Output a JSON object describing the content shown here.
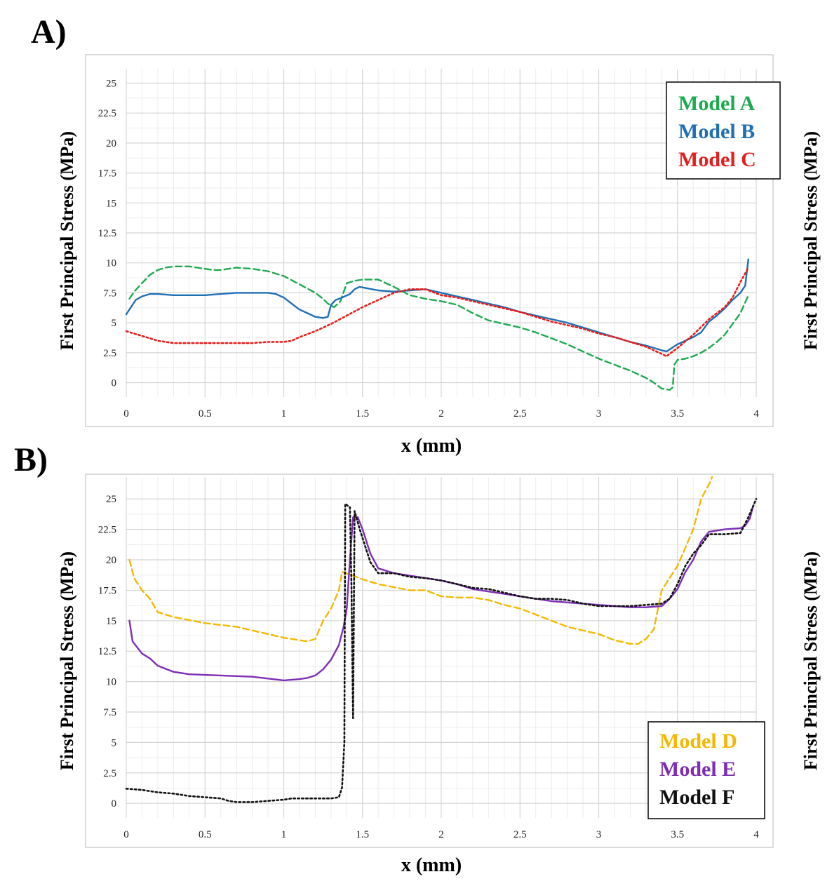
{
  "panels": {
    "a": {
      "label": "A)"
    },
    "b": {
      "label": "B)"
    }
  },
  "chart_data": [
    {
      "type": "line",
      "panel": "A)",
      "title": "",
      "xlabel": "x (mm)",
      "ylabel": "First Principal Stress (MPa)",
      "ylabel_right": "First Principal Stress (MPa)",
      "xlim": [
        0,
        4
      ],
      "ylim": [
        -1.2,
        26.2
      ],
      "xticks": [
        "0",
        "0.5",
        "1",
        "1.5",
        "2",
        "2.5",
        "3",
        "3.5",
        "4"
      ],
      "yticks": [
        "0",
        "2.5",
        "5",
        "7.5",
        "10",
        "12.5",
        "15",
        "17.5",
        "20",
        "22.5",
        "25"
      ],
      "grid": true,
      "legend_position": "top-right",
      "series": [
        {
          "name": "Model A",
          "color": "#1daa4f",
          "style": "dashed",
          "x": [
            0.02,
            0.05,
            0.1,
            0.15,
            0.2,
            0.25,
            0.3,
            0.35,
            0.4,
            0.45,
            0.5,
            0.55,
            0.6,
            0.7,
            0.8,
            0.9,
            1.0,
            1.1,
            1.2,
            1.25,
            1.28,
            1.32,
            1.36,
            1.4,
            1.45,
            1.5,
            1.6,
            1.7,
            1.8,
            1.9,
            2.0,
            2.1,
            2.2,
            2.3,
            2.4,
            2.5,
            2.6,
            2.7,
            2.8,
            2.9,
            3.0,
            3.1,
            3.2,
            3.3,
            3.35,
            3.4,
            3.45,
            3.47,
            3.48,
            3.5,
            3.55,
            3.6,
            3.65,
            3.7,
            3.75,
            3.8,
            3.85,
            3.9,
            3.95
          ],
          "y": [
            7.0,
            7.6,
            8.3,
            9.0,
            9.4,
            9.6,
            9.7,
            9.7,
            9.7,
            9.6,
            9.5,
            9.4,
            9.4,
            9.6,
            9.5,
            9.3,
            8.9,
            8.2,
            7.5,
            7.0,
            6.6,
            6.3,
            6.8,
            8.3,
            8.5,
            8.6,
            8.6,
            8.0,
            7.3,
            7.0,
            6.8,
            6.5,
            5.8,
            5.2,
            4.9,
            4.6,
            4.2,
            3.7,
            3.2,
            2.6,
            2.0,
            1.5,
            1.0,
            0.4,
            0.0,
            -0.5,
            -0.6,
            -0.4,
            1.5,
            1.9,
            2.0,
            2.2,
            2.5,
            2.9,
            3.4,
            4.0,
            4.9,
            5.8,
            7.3
          ]
        },
        {
          "name": "Model B",
          "color": "#1f6fb4",
          "style": "solid",
          "x": [
            0.0,
            0.03,
            0.06,
            0.1,
            0.15,
            0.2,
            0.3,
            0.4,
            0.5,
            0.6,
            0.7,
            0.8,
            0.9,
            0.95,
            1.0,
            1.05,
            1.1,
            1.15,
            1.2,
            1.25,
            1.28,
            1.3,
            1.33,
            1.37,
            1.42,
            1.45,
            1.48,
            1.52,
            1.6,
            1.7,
            1.8,
            1.9,
            2.0,
            2.1,
            2.2,
            2.3,
            2.4,
            2.5,
            2.6,
            2.7,
            2.8,
            2.9,
            3.0,
            3.1,
            3.2,
            3.3,
            3.4,
            3.43,
            3.5,
            3.6,
            3.65,
            3.7,
            3.75,
            3.8,
            3.85,
            3.9,
            3.93,
            3.95
          ],
          "y": [
            5.7,
            6.3,
            6.9,
            7.2,
            7.4,
            7.4,
            7.3,
            7.3,
            7.3,
            7.4,
            7.5,
            7.5,
            7.5,
            7.4,
            7.1,
            6.6,
            6.1,
            5.8,
            5.5,
            5.4,
            5.5,
            6.5,
            6.9,
            7.1,
            7.4,
            7.8,
            8.0,
            7.9,
            7.7,
            7.6,
            7.7,
            7.8,
            7.5,
            7.2,
            6.9,
            6.6,
            6.3,
            5.9,
            5.6,
            5.3,
            5.0,
            4.6,
            4.2,
            3.8,
            3.4,
            3.1,
            2.7,
            2.6,
            3.2,
            3.8,
            4.2,
            5.1,
            5.6,
            6.2,
            6.9,
            7.5,
            8.1,
            10.3
          ]
        },
        {
          "name": "Model C",
          "color": "#e61e1e",
          "style": "dotted",
          "x": [
            0.0,
            0.1,
            0.2,
            0.3,
            0.4,
            0.5,
            0.6,
            0.7,
            0.8,
            0.9,
            1.0,
            1.05,
            1.1,
            1.2,
            1.3,
            1.4,
            1.5,
            1.6,
            1.7,
            1.8,
            1.9,
            2.0,
            2.1,
            2.2,
            2.3,
            2.4,
            2.5,
            2.6,
            2.7,
            2.8,
            2.9,
            3.0,
            3.1,
            3.2,
            3.3,
            3.4,
            3.43,
            3.5,
            3.6,
            3.7,
            3.8,
            3.85,
            3.9,
            3.95
          ],
          "y": [
            4.3,
            3.9,
            3.5,
            3.3,
            3.3,
            3.3,
            3.3,
            3.3,
            3.3,
            3.4,
            3.4,
            3.5,
            3.8,
            4.3,
            4.9,
            5.6,
            6.3,
            6.9,
            7.5,
            7.8,
            7.8,
            7.3,
            7.1,
            6.8,
            6.5,
            6.2,
            5.9,
            5.5,
            5.1,
            4.8,
            4.5,
            4.1,
            3.8,
            3.4,
            3.0,
            2.4,
            2.2,
            2.9,
            4.0,
            5.3,
            6.3,
            7.1,
            8.4,
            9.6
          ]
        }
      ]
    },
    {
      "type": "line",
      "panel": "B)",
      "title": "",
      "xlabel": "x (mm)",
      "ylabel": "First Principal Stress (MPa)",
      "ylabel_right": "First Principal Stress (MPa)",
      "xlim": [
        0,
        4
      ],
      "ylim": [
        -1.2,
        26.8
      ],
      "xticks": [
        "0",
        "0.5",
        "1",
        "1.5",
        "2",
        "2.5",
        "3",
        "3.5",
        "4"
      ],
      "yticks": [
        "0",
        "2.5",
        "5",
        "7.5",
        "10",
        "12.5",
        "15",
        "17.5",
        "20",
        "22.5",
        "25"
      ],
      "grid": true,
      "legend_position": "bottom-right",
      "series": [
        {
          "name": "Model D",
          "color": "#f5b800",
          "style": "dashed",
          "x": [
            0.02,
            0.05,
            0.1,
            0.15,
            0.2,
            0.3,
            0.5,
            0.7,
            0.8,
            1.0,
            1.15,
            1.2,
            1.25,
            1.3,
            1.35,
            1.37,
            1.42,
            1.5,
            1.6,
            1.8,
            1.9,
            2.0,
            2.1,
            2.2,
            2.3,
            2.4,
            2.5,
            2.6,
            2.7,
            2.8,
            2.9,
            3.0,
            3.1,
            3.2,
            3.25,
            3.3,
            3.35,
            3.4,
            3.45,
            3.5,
            3.55,
            3.6,
            3.65,
            3.7,
            3.72
          ],
          "y": [
            20.0,
            18.5,
            17.5,
            16.8,
            15.7,
            15.3,
            14.8,
            14.5,
            14.2,
            13.6,
            13.3,
            13.5,
            15.0,
            16.0,
            17.5,
            19.0,
            18.8,
            18.4,
            18.0,
            17.5,
            17.5,
            17.0,
            16.9,
            16.9,
            16.7,
            16.3,
            16.0,
            15.5,
            15.0,
            14.5,
            14.2,
            13.9,
            13.4,
            13.1,
            13.1,
            13.5,
            14.3,
            17.5,
            18.5,
            19.5,
            21.0,
            22.5,
            25.0,
            26.2,
            26.8
          ]
        },
        {
          "name": "Model E",
          "color": "#7d2eb5",
          "style": "solid",
          "x": [
            0.02,
            0.04,
            0.07,
            0.1,
            0.15,
            0.2,
            0.3,
            0.4,
            0.6,
            0.8,
            1.0,
            1.1,
            1.15,
            1.2,
            1.25,
            1.3,
            1.35,
            1.38,
            1.4,
            1.42,
            1.44,
            1.47,
            1.5,
            1.55,
            1.6,
            1.7,
            1.8,
            1.9,
            2.0,
            2.1,
            2.2,
            2.3,
            2.4,
            2.5,
            2.6,
            2.7,
            2.8,
            2.9,
            3.0,
            3.1,
            3.2,
            3.3,
            3.4,
            3.45,
            3.5,
            3.55,
            3.6,
            3.65,
            3.7,
            3.8,
            3.9,
            3.93,
            3.96,
            3.98
          ],
          "y": [
            15.0,
            13.3,
            12.8,
            12.3,
            11.9,
            11.3,
            10.8,
            10.6,
            10.5,
            10.4,
            10.1,
            10.2,
            10.3,
            10.5,
            11.0,
            11.8,
            13.0,
            14.5,
            16.0,
            20.0,
            23.5,
            23.5,
            22.5,
            20.5,
            19.3,
            18.9,
            18.7,
            18.5,
            18.3,
            18.0,
            17.6,
            17.4,
            17.2,
            17.0,
            16.8,
            16.6,
            16.5,
            16.4,
            16.3,
            16.2,
            16.1,
            16.1,
            16.2,
            16.8,
            17.6,
            19.0,
            20.0,
            21.5,
            22.3,
            22.5,
            22.6,
            22.8,
            23.4,
            24.4
          ]
        },
        {
          "name": "Model F",
          "color": "#111111",
          "style": "dotted",
          "x": [
            0.0,
            0.1,
            0.2,
            0.3,
            0.4,
            0.5,
            0.6,
            0.65,
            0.7,
            0.8,
            0.9,
            1.0,
            1.05,
            1.1,
            1.2,
            1.3,
            1.35,
            1.37,
            1.385,
            1.39,
            1.42,
            1.43,
            1.44,
            1.45,
            1.48,
            1.52,
            1.55,
            1.6,
            1.7,
            1.8,
            1.9,
            2.0,
            2.1,
            2.2,
            2.3,
            2.4,
            2.5,
            2.6,
            2.7,
            2.8,
            2.9,
            3.0,
            3.1,
            3.2,
            3.3,
            3.4,
            3.45,
            3.5,
            3.55,
            3.6,
            3.65,
            3.7,
            3.8,
            3.9,
            3.95,
            4.0
          ],
          "y": [
            1.2,
            1.1,
            0.9,
            0.8,
            0.6,
            0.5,
            0.4,
            0.2,
            0.1,
            0.1,
            0.2,
            0.3,
            0.4,
            0.4,
            0.4,
            0.4,
            0.5,
            1.3,
            5.0,
            24.6,
            24.3,
            18.0,
            7.0,
            24.0,
            22.6,
            21.0,
            19.8,
            18.9,
            18.9,
            18.6,
            18.5,
            18.3,
            18.0,
            17.7,
            17.6,
            17.3,
            17.0,
            16.8,
            16.8,
            16.7,
            16.4,
            16.2,
            16.2,
            16.2,
            16.3,
            16.4,
            16.8,
            18.0,
            19.5,
            20.5,
            21.2,
            22.1,
            22.1,
            22.2,
            23.5,
            25.0
          ]
        }
      ]
    }
  ]
}
